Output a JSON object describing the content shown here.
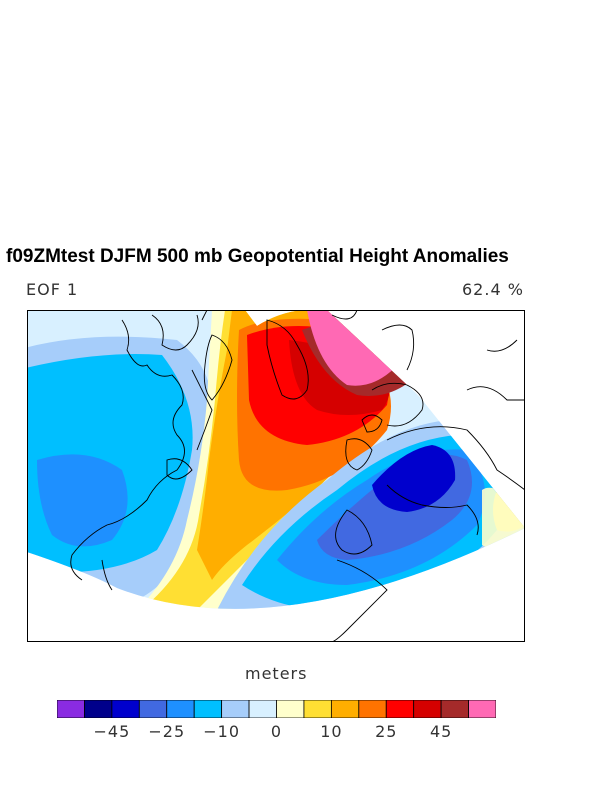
{
  "title": "f09ZMtest DJFM 500 mb Geopotential Height Anomalies",
  "subtitle_left": "EOF 1",
  "subtitle_right": "62.4 %",
  "colorbar": {
    "units": "meters",
    "colors": [
      "#8a2be2",
      "#00008b",
      "#0000cd",
      "#4169e1",
      "#1e90ff",
      "#00bfff",
      "#a6cdfa",
      "#d8f0ff",
      "#ffffcc",
      "#ffdf33",
      "#ffae00",
      "#ff7300",
      "#ff0000",
      "#d50000",
      "#a52a2a",
      "#ff69b4"
    ],
    "labels": [
      "−45",
      "−25",
      "−10",
      "0",
      "10",
      "25",
      "45"
    ]
  }
}
